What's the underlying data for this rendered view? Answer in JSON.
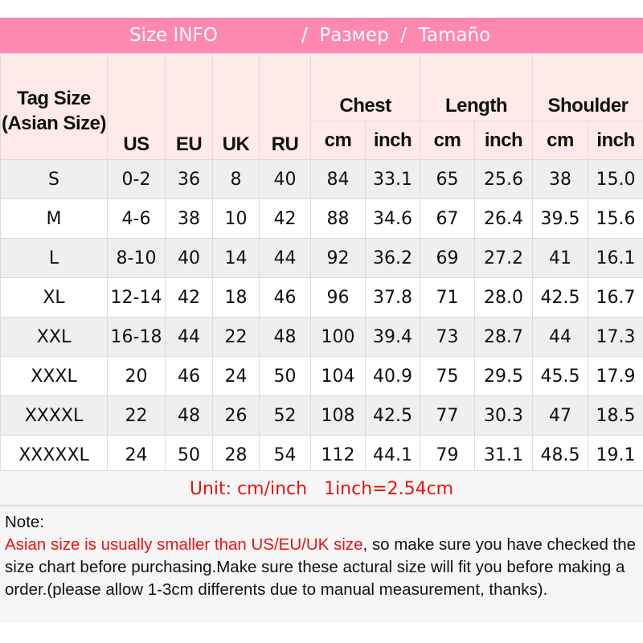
{
  "title": {
    "part1": "Size INFO",
    "part2": "/  Размер  /  Tamaño"
  },
  "header": {
    "tag_size": "Tag Size (Asian Size)",
    "us": "US",
    "eu": "EU",
    "uk": "UK",
    "ru": "RU",
    "chest": "Chest",
    "length": "Length",
    "shoulder": "Shoulder",
    "cm": "cm",
    "inch": "inch"
  },
  "rows": [
    [
      "S",
      "0-2",
      "36",
      "8",
      "40",
      "84",
      "33.1",
      "65",
      "25.6",
      "38",
      "15.0"
    ],
    [
      "M",
      "4-6",
      "38",
      "10",
      "42",
      "88",
      "34.6",
      "67",
      "26.4",
      "39.5",
      "15.6"
    ],
    [
      "L",
      "8-10",
      "40",
      "14",
      "44",
      "92",
      "36.2",
      "69",
      "27.2",
      "41",
      "16.1"
    ],
    [
      "XL",
      "12-14",
      "42",
      "18",
      "46",
      "96",
      "37.8",
      "71",
      "28.0",
      "42.5",
      "16.7"
    ],
    [
      "XXL",
      "16-18",
      "44",
      "22",
      "48",
      "100",
      "39.4",
      "73",
      "28.7",
      "44",
      "17.3"
    ],
    [
      "XXXL",
      "20",
      "46",
      "24",
      "50",
      "104",
      "40.9",
      "75",
      "29.5",
      "45.5",
      "17.9"
    ],
    [
      "XXXXL",
      "22",
      "48",
      "26",
      "52",
      "108",
      "42.5",
      "77",
      "30.3",
      "47",
      "18.5"
    ],
    [
      "XXXXXL",
      "24",
      "50",
      "28",
      "54",
      "112",
      "44.1",
      "79",
      "31.1",
      "48.5",
      "19.1"
    ]
  ],
  "unit": "Unit: cm/inch   1inch=2.54cm",
  "note": {
    "label": "Note:",
    "warning": "Asian size is usually smaller than US/EU/UK size",
    "text": ", so make sure you have checked the size chart before purchasing.Make sure these actural size will fit you before making a order.(please allow 1-3cm differents due to manual measurement, thanks)."
  },
  "colors": {
    "title_bg": "#ff88b0",
    "header_bg": "#ffe9e9",
    "warning": "#ee1111"
  }
}
